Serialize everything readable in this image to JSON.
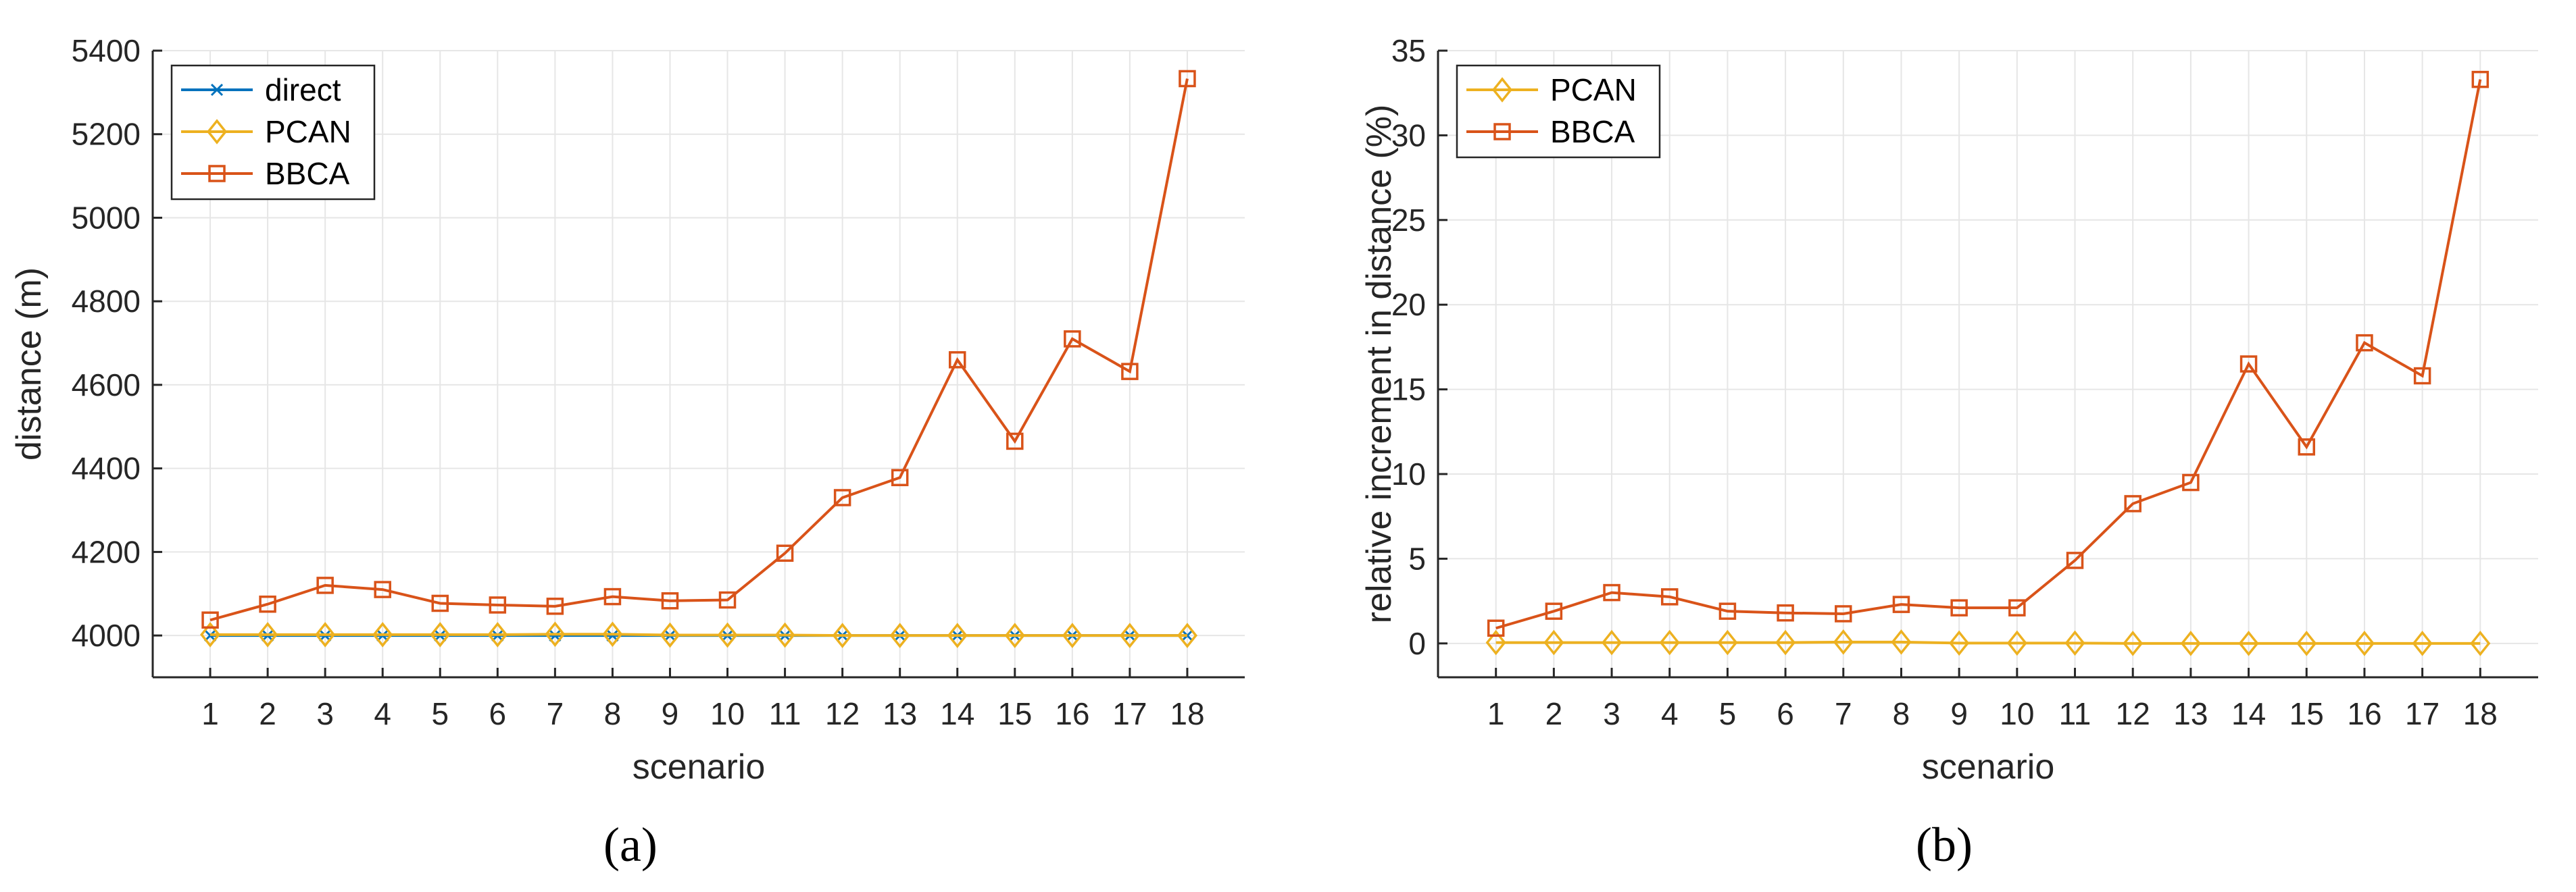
{
  "chart_data": [
    {
      "type": "line",
      "panel_label": "(a)",
      "title": "",
      "xlabel": "scenario",
      "ylabel": "distance (m)",
      "categories": [
        "1",
        "2",
        "3",
        "4",
        "5",
        "6",
        "7",
        "8",
        "9",
        "10",
        "11",
        "12",
        "13",
        "14",
        "15",
        "16",
        "17",
        "18"
      ],
      "x": [
        1,
        2,
        3,
        4,
        5,
        6,
        7,
        8,
        9,
        10,
        11,
        12,
        13,
        14,
        15,
        16,
        17,
        18
      ],
      "xlim": [
        0,
        19
      ],
      "ylim": [
        3900,
        5400
      ],
      "yticks": [
        4000,
        4200,
        4400,
        4600,
        4800,
        5000,
        5200,
        5400
      ],
      "grid": true,
      "legend_position": "top-left",
      "series": [
        {
          "name": "direct",
          "marker": "x",
          "color": "#0072BD",
          "values": [
            4000,
            4000,
            4000,
            4000,
            4000,
            4000,
            4000,
            4000,
            4000,
            4000,
            4000,
            4000,
            4000,
            4000,
            4000,
            4000,
            4000,
            4000
          ]
        },
        {
          "name": "PCAN",
          "marker": "diamond",
          "color": "#EDB120",
          "values": [
            4002,
            4002,
            4002,
            4002,
            4002,
            4002,
            4003,
            4003,
            4001,
            4001,
            4001,
            4000,
            4000,
            4000,
            4000,
            4000,
            4000,
            4000
          ]
        },
        {
          "name": "BBCA",
          "marker": "square",
          "color": "#D95319",
          "values": [
            4037,
            4075,
            4120,
            4110,
            4077,
            4073,
            4070,
            4093,
            4083,
            4085,
            4197,
            4330,
            4378,
            4660,
            4465,
            4710,
            4632,
            5333
          ]
        }
      ]
    },
    {
      "type": "line",
      "panel_label": "(b)",
      "title": "",
      "xlabel": "scenario",
      "ylabel": "relative increment in distance (%)",
      "categories": [
        "1",
        "2",
        "3",
        "4",
        "5",
        "6",
        "7",
        "8",
        "9",
        "10",
        "11",
        "12",
        "13",
        "14",
        "15",
        "16",
        "17",
        "18"
      ],
      "x": [
        1,
        2,
        3,
        4,
        5,
        6,
        7,
        8,
        9,
        10,
        11,
        12,
        13,
        14,
        15,
        16,
        17,
        18
      ],
      "xlim": [
        0,
        19
      ],
      "ylim": [
        -2,
        35
      ],
      "yticks": [
        0,
        5,
        10,
        15,
        20,
        25,
        30,
        35
      ],
      "grid": true,
      "legend_position": "top-left",
      "series": [
        {
          "name": "PCAN",
          "marker": "diamond",
          "color": "#EDB120",
          "values": [
            0.05,
            0.05,
            0.05,
            0.05,
            0.05,
            0.05,
            0.08,
            0.08,
            0.02,
            0.02,
            0.02,
            0,
            0,
            0,
            0,
            0,
            0,
            0
          ]
        },
        {
          "name": "BBCA",
          "marker": "square",
          "color": "#D95319",
          "values": [
            0.9,
            1.9,
            3.0,
            2.75,
            1.9,
            1.8,
            1.75,
            2.3,
            2.1,
            2.1,
            4.9,
            8.25,
            9.5,
            16.5,
            11.6,
            17.75,
            15.8,
            33.3
          ]
        }
      ]
    }
  ]
}
